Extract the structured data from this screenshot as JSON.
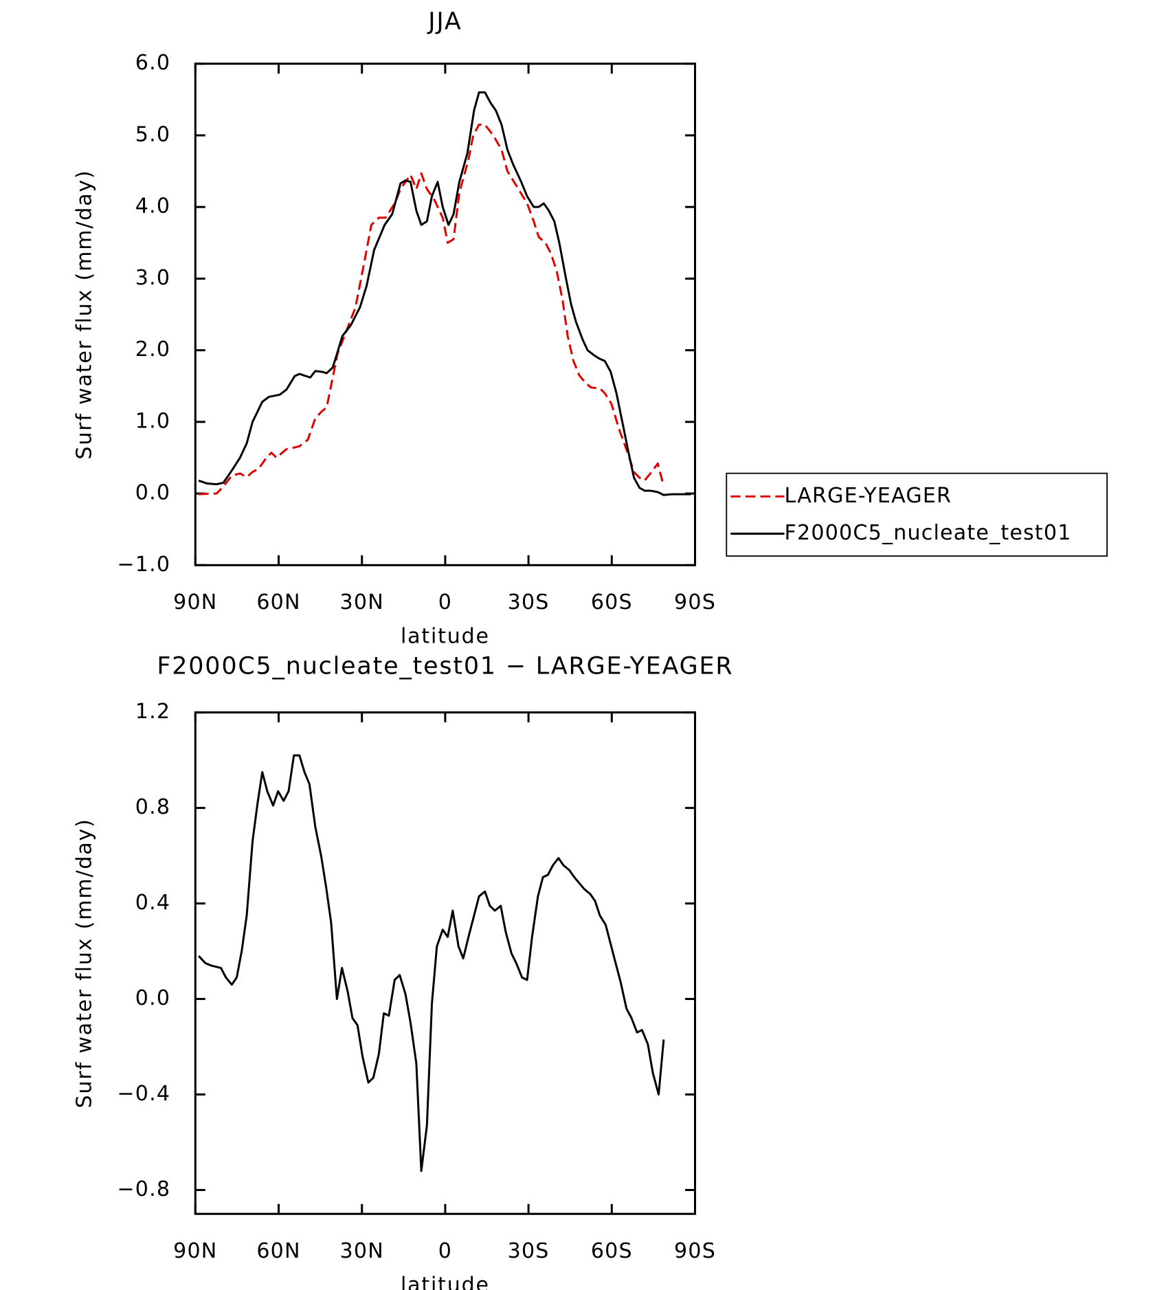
{
  "chart_data": [
    {
      "type": "line",
      "title": "JJA",
      "xlabel": "latitude",
      "ylabel": "Surf water flux (mm/day)",
      "xlim": [
        90,
        -90
      ],
      "xticks": [
        {
          "value": 90,
          "label": "90N"
        },
        {
          "value": 60,
          "label": "60N"
        },
        {
          "value": 30,
          "label": "30N"
        },
        0,
        {
          "value": -30,
          "label": "30S"
        },
        {
          "value": -60,
          "label": "60S"
        },
        {
          "value": -90,
          "label": "90S"
        }
      ],
      "ylim": [
        -1,
        6
      ],
      "yticks": [
        {
          "value": -1,
          "label": "−1.0"
        },
        {
          "value": 0,
          "label": "0.0"
        },
        {
          "value": 1,
          "label": "1.0"
        },
        {
          "value": 2,
          "label": "2.0"
        },
        {
          "value": 3,
          "label": "3.0"
        },
        {
          "value": 4,
          "label": "4.0"
        },
        {
          "value": 5,
          "label": "5.0"
        },
        {
          "value": 6,
          "label": "6.0"
        }
      ],
      "legend": "right",
      "series": [
        {
          "name": "LARGE-YEAGER",
          "color": "#e00000",
          "linestyle": "dashed",
          "x": [
            88.8,
            82.3,
            79.9,
            76.9,
            73.9,
            71.5,
            69.4,
            67.1,
            64.4,
            62.6,
            60.8,
            57.2,
            54.5,
            52.5,
            49.5,
            46.8,
            44.4,
            42.7,
            38.8,
            35.8,
            32.3,
            29.3,
            26.6,
            23.9,
            21.5,
            18.2,
            16.1,
            14.3,
            12.5,
            10.4,
            8.6,
            6.6,
            3.9,
            0.9,
            -0.9,
            -3.0,
            -5.1,
            -8.3,
            -10.1,
            -12.2,
            -14.3,
            -17.3,
            -20.3,
            -22.4,
            -25.6,
            -29.5,
            -31.9,
            -33.7,
            -36.1,
            -38.1,
            -40.2,
            -42.3,
            -44.1,
            -46.2,
            -48.3,
            -50.4,
            -52.5,
            -55.7,
            -57.5,
            -59.9,
            -62.6,
            -65.9,
            -68.0,
            -70.0,
            -71.8,
            -73.9,
            -76.6,
            -78.7
          ],
          "values": [
            -0.01,
            0.0,
            0.1,
            0.25,
            0.28,
            0.23,
            0.3,
            0.35,
            0.5,
            0.57,
            0.5,
            0.62,
            0.64,
            0.66,
            0.75,
            1.05,
            1.15,
            1.2,
            1.95,
            2.25,
            2.6,
            3.2,
            3.75,
            3.85,
            3.85,
            4.05,
            4.25,
            4.35,
            4.45,
            4.25,
            4.47,
            4.25,
            4.1,
            3.85,
            3.5,
            3.55,
            4.2,
            4.65,
            5.0,
            5.15,
            5.15,
            5.0,
            4.8,
            4.5,
            4.3,
            4.05,
            3.8,
            3.58,
            3.5,
            3.35,
            3.1,
            2.7,
            2.2,
            1.85,
            1.65,
            1.55,
            1.48,
            1.47,
            1.4,
            1.25,
            0.9,
            0.55,
            0.3,
            0.22,
            0.18,
            0.28,
            0.42,
            0.1
          ]
        },
        {
          "name": "F2000C5_nucleate_test01",
          "color": "#000000",
          "linestyle": "solid",
          "x": [
            88.8,
            85.8,
            82.3,
            79.9,
            76.9,
            73.9,
            71.5,
            69.4,
            65.9,
            63.5,
            59.6,
            57.2,
            54.2,
            52.5,
            48.6,
            46.8,
            44.4,
            42.7,
            40.5,
            37.0,
            34.0,
            30.7,
            28.3,
            25.6,
            21.8,
            19.1,
            16.1,
            14.3,
            12.5,
            10.4,
            8.6,
            6.6,
            4.8,
            2.7,
            0.9,
            -1.2,
            -3.0,
            -5.1,
            -8.0,
            -10.4,
            -12.2,
            -14.3,
            -16.4,
            -18.2,
            -20.3,
            -22.4,
            -24.4,
            -27.4,
            -29.5,
            -31.9,
            -33.7,
            -35.5,
            -37.3,
            -39.3,
            -41.1,
            -43.5,
            -45.3,
            -47.1,
            -49.5,
            -51.3,
            -53.6,
            -55.7,
            -57.5,
            -59.6,
            -61.7,
            -63.8,
            -65.9,
            -68.0,
            -70.0,
            -71.8,
            -73.9,
            -76.6,
            -78.7,
            -81.7,
            -88.5
          ],
          "values": [
            0.18,
            0.14,
            0.13,
            0.15,
            0.32,
            0.5,
            0.7,
            1.0,
            1.28,
            1.35,
            1.38,
            1.45,
            1.64,
            1.67,
            1.62,
            1.71,
            1.7,
            1.68,
            1.76,
            2.2,
            2.35,
            2.6,
            2.9,
            3.4,
            3.75,
            3.9,
            4.33,
            4.37,
            4.35,
            3.95,
            3.75,
            3.8,
            4.15,
            4.35,
            4.0,
            3.75,
            3.9,
            4.35,
            4.75,
            5.35,
            5.6,
            5.6,
            5.45,
            5.35,
            5.15,
            4.8,
            4.6,
            4.35,
            4.15,
            4.0,
            4.0,
            4.05,
            3.95,
            3.8,
            3.5,
            3.0,
            2.65,
            2.4,
            2.15,
            2.0,
            1.93,
            1.88,
            1.85,
            1.7,
            1.4,
            1.0,
            0.6,
            0.22,
            0.08,
            0.04,
            0.04,
            0.02,
            -0.02,
            -0.01,
            -0.01
          ]
        }
      ]
    },
    {
      "type": "line",
      "title": "F2000C5_nucleate_test01 − LARGE-YEAGER",
      "xlabel": "latitude",
      "ylabel": "Surf water flux (mm/day)",
      "xlim": [
        90,
        -90
      ],
      "xticks": [
        {
          "value": 90,
          "label": "90N"
        },
        {
          "value": 60,
          "label": "60N"
        },
        {
          "value": 30,
          "label": "30N"
        },
        0,
        {
          "value": -30,
          "label": "30S"
        },
        {
          "value": -60,
          "label": "60S"
        },
        {
          "value": -90,
          "label": "90S"
        }
      ],
      "ylim": [
        -0.9,
        1.2
      ],
      "yticks": [
        {
          "value": -0.8,
          "label": "−0.8"
        },
        {
          "value": -0.4,
          "label": "−0.4"
        },
        {
          "value": 0,
          "label": "0.0"
        },
        0.4,
        0.8,
        1.2
      ],
      "series": [
        {
          "color": "#000000",
          "linestyle": "solid",
          "x": [
            88.8,
            86.4,
            84.3,
            80.8,
            79.0,
            76.9,
            75.1,
            73.3,
            71.5,
            69.4,
            67.6,
            65.9,
            64.1,
            62.0,
            60.2,
            58.2,
            56.4,
            54.5,
            52.5,
            50.7,
            48.9,
            46.8,
            44.7,
            42.9,
            41.1,
            39.0,
            37.2,
            35.1,
            33.4,
            31.6,
            29.8,
            27.7,
            25.9,
            23.9,
            22.1,
            20.3,
            18.2,
            16.4,
            14.3,
            12.5,
            10.4,
            8.6,
            6.6,
            4.8,
            3.0,
            0.9,
            -0.9,
            -2.7,
            -4.8,
            -6.5,
            -8.6,
            -10.4,
            -12.2,
            -14.3,
            -16.1,
            -17.9,
            -20.0,
            -21.8,
            -23.9,
            -25.6,
            -27.7,
            -29.5,
            -31.3,
            -33.4,
            -35.2,
            -37.0,
            -38.8,
            -40.8,
            -42.6,
            -44.7,
            -46.5,
            -50.1,
            -52.2,
            -54.0,
            -55.7,
            -57.8,
            -59.6,
            -61.4,
            -63.2,
            -65.3,
            -67.1,
            -69.1,
            -70.9,
            -73.0,
            -74.8,
            -76.9,
            -78.7
          ],
          "values": [
            0.18,
            0.15,
            0.14,
            0.13,
            0.09,
            0.06,
            0.09,
            0.2,
            0.35,
            0.66,
            0.82,
            0.95,
            0.87,
            0.81,
            0.87,
            0.83,
            0.87,
            1.02,
            1.02,
            0.95,
            0.9,
            0.72,
            0.6,
            0.47,
            0.32,
            0.0,
            0.13,
            0.03,
            -0.08,
            -0.11,
            -0.24,
            -0.35,
            -0.33,
            -0.23,
            -0.06,
            -0.07,
            0.08,
            0.1,
            0.02,
            -0.1,
            -0.27,
            -0.72,
            -0.53,
            -0.02,
            0.22,
            0.29,
            0.26,
            0.37,
            0.22,
            0.17,
            0.27,
            0.35,
            0.43,
            0.45,
            0.39,
            0.37,
            0.39,
            0.28,
            0.19,
            0.15,
            0.09,
            0.08,
            0.26,
            0.43,
            0.51,
            0.52,
            0.56,
            0.59,
            0.56,
            0.54,
            0.51,
            0.46,
            0.44,
            0.41,
            0.35,
            0.31,
            0.23,
            0.15,
            0.07,
            -0.04,
            -0.08,
            -0.14,
            -0.13,
            -0.19,
            -0.31,
            -0.4,
            -0.17
          ]
        }
      ]
    }
  ]
}
